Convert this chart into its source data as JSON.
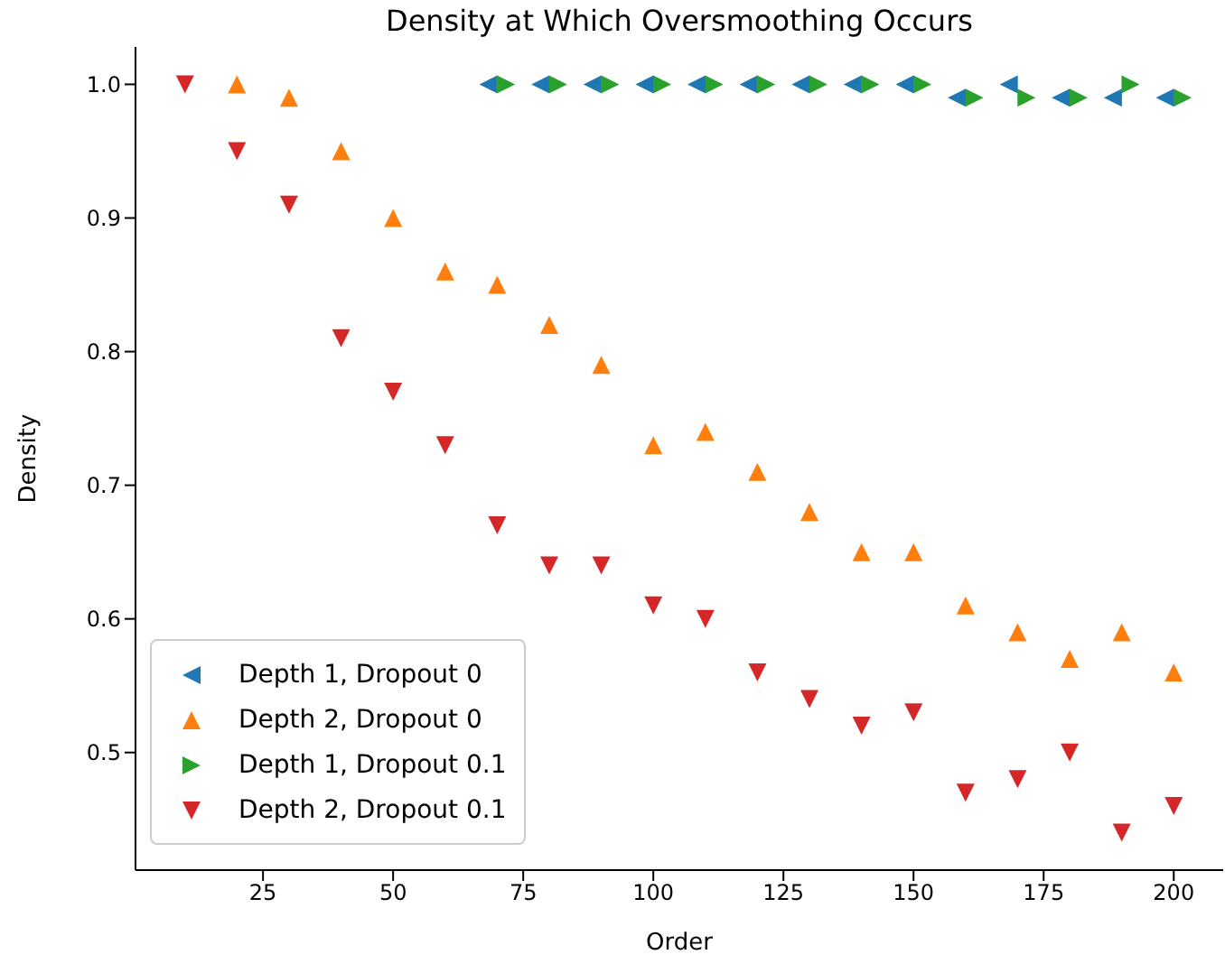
{
  "chart_data": {
    "type": "scatter",
    "title": "Density at Which Oversmoothing Occurs",
    "xlabel": "Order",
    "ylabel": "Density",
    "series": [
      {
        "name": "Depth 1, Dropout 0",
        "color": "#1f77b4",
        "marker": "triangle-left",
        "x": [
          68.3,
          78.3,
          88.3,
          98.3,
          108.3,
          118.3,
          128.3,
          138.3,
          148.3,
          158.3,
          168.3,
          178.3,
          188.3,
          198.3
        ],
        "values": [
          1.0,
          1.0,
          1.0,
          1.0,
          1.0,
          1.0,
          1.0,
          1.0,
          1.0,
          0.99,
          1.0,
          0.99,
          0.99,
          0.99
        ]
      },
      {
        "name": "Depth 2, Dropout 0",
        "color": "#ff7f0e",
        "marker": "triangle-up",
        "x": [
          20,
          30,
          40,
          50,
          60,
          70,
          80,
          90,
          100,
          110,
          120,
          130,
          140,
          150,
          160,
          170,
          180,
          190,
          200
        ],
        "values": [
          1.0,
          0.99,
          0.95,
          0.9,
          0.86,
          0.85,
          0.82,
          0.79,
          0.73,
          0.74,
          0.71,
          0.68,
          0.65,
          0.65,
          0.61,
          0.59,
          0.57,
          0.59,
          0.56
        ]
      },
      {
        "name": "Depth 1, Dropout 0.1",
        "color": "#2ca02c",
        "marker": "triangle-right",
        "x": [
          71.7,
          81.7,
          91.7,
          101.7,
          111.7,
          121.7,
          131.7,
          141.7,
          151.7,
          161.7,
          171.7,
          181.7,
          191.7,
          201.7
        ],
        "values": [
          1.0,
          1.0,
          1.0,
          1.0,
          1.0,
          1.0,
          1.0,
          1.0,
          1.0,
          0.99,
          0.99,
          0.99,
          1.0,
          0.99
        ]
      },
      {
        "name": "Depth 2, Dropout 0.1",
        "color": "#d62728",
        "marker": "triangle-down",
        "x": [
          10,
          20,
          30,
          40,
          50,
          60,
          70,
          80,
          90,
          100,
          110,
          120,
          130,
          140,
          150,
          160,
          170,
          180,
          190,
          200
        ],
        "values": [
          1.0,
          0.95,
          0.91,
          0.81,
          0.77,
          0.73,
          0.67,
          0.64,
          0.64,
          0.61,
          0.6,
          0.56,
          0.54,
          0.52,
          0.53,
          0.47,
          0.48,
          0.5,
          0.44,
          0.46
        ]
      }
    ],
    "xlim": [
      0.5,
      209.5
    ],
    "xticks": [
      25,
      50,
      75,
      100,
      125,
      150,
      175,
      200
    ],
    "ylim": [
      0.412,
      1.028
    ],
    "yticks": [
      {
        "value": 0.5,
        "label": "0.5"
      },
      {
        "value": 0.6,
        "label": "0.6"
      },
      {
        "value": 0.7,
        "label": "0.7"
      },
      {
        "value": 0.8,
        "label": "0.8"
      },
      {
        "value": 0.9,
        "label": "0.9"
      },
      {
        "value": 1.0,
        "label": "1.0"
      }
    ],
    "grid": false,
    "legend": "bottom left"
  }
}
